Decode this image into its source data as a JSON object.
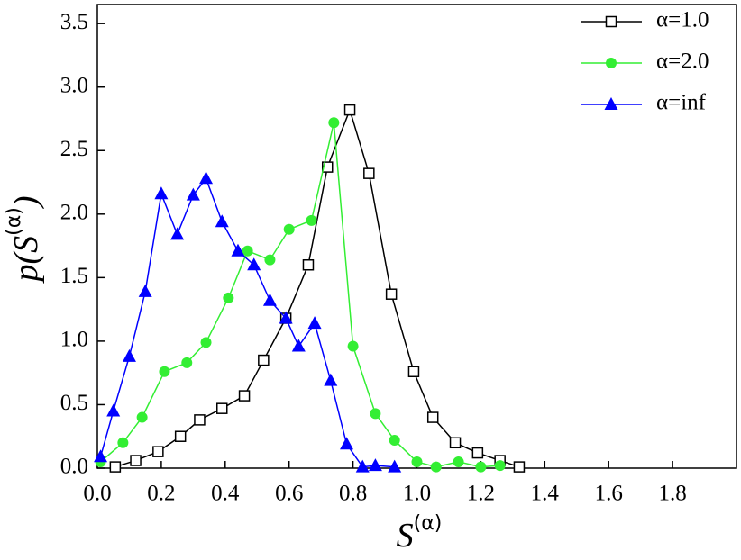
{
  "chart_data": {
    "type": "line",
    "xlabel": {
      "base": "S",
      "sup": "(α)"
    },
    "ylabel": {
      "prefix": "p(",
      "base": "S",
      "sup": "(α)",
      "suffix": ")"
    },
    "xlim": [
      0,
      2.0
    ],
    "ylim": [
      0,
      3.65
    ],
    "xticks": [
      {
        "value": 0,
        "label": "0.0"
      },
      0.2,
      0.4,
      0.6,
      0.8,
      {
        "value": 1,
        "label": "1.0"
      },
      1.2,
      1.4,
      1.6,
      1.8
    ],
    "yticks": [
      {
        "value": 0,
        "label": "0.0"
      },
      0.5,
      {
        "value": 1,
        "label": "1.0"
      },
      1.5,
      {
        "value": 2,
        "label": "2.0"
      },
      2.5,
      {
        "value": 3,
        "label": "3.0"
      },
      3.5
    ],
    "grid": false,
    "legend": "top-right",
    "series": [
      {
        "name": "α=1.0",
        "color": "#000000",
        "marker": "open-square",
        "x": [
          0.056,
          0.12,
          0.19,
          0.26,
          0.32,
          0.39,
          0.46,
          0.52,
          0.59,
          0.66,
          0.72,
          0.79,
          0.85,
          0.92,
          0.99,
          1.05,
          1.12,
          1.19,
          1.26,
          1.32
        ],
        "values": [
          0.01,
          0.06,
          0.13,
          0.25,
          0.38,
          0.47,
          0.57,
          0.85,
          1.18,
          1.6,
          2.37,
          2.82,
          2.32,
          1.37,
          0.76,
          0.4,
          0.2,
          0.12,
          0.06,
          0.01
        ]
      },
      {
        "name": "α=2.0",
        "color": "#33ee33",
        "marker": "circle",
        "x": [
          0.01,
          0.08,
          0.14,
          0.21,
          0.28,
          0.34,
          0.41,
          0.47,
          0.54,
          0.6,
          0.67,
          0.74,
          0.8,
          0.87,
          0.93,
          1.0,
          1.06,
          1.13,
          1.2,
          1.26
        ],
        "values": [
          0.05,
          0.2,
          0.4,
          0.76,
          0.83,
          0.99,
          1.34,
          1.71,
          1.64,
          1.88,
          1.95,
          2.72,
          0.96,
          0.43,
          0.22,
          0.05,
          0.01,
          0.05,
          0.01,
          0.02
        ]
      },
      {
        "name": "α=inf",
        "color": "#0000ff",
        "marker": "triangle",
        "x": [
          0.01,
          0.05,
          0.1,
          0.15,
          0.2,
          0.25,
          0.3,
          0.34,
          0.39,
          0.44,
          0.49,
          0.54,
          0.59,
          0.63,
          0.68,
          0.73,
          0.78,
          0.83,
          0.87,
          0.93
        ],
        "values": [
          0.09,
          0.45,
          0.88,
          1.39,
          2.16,
          1.84,
          2.15,
          2.28,
          1.94,
          1.71,
          1.6,
          1.32,
          1.18,
          0.96,
          1.14,
          0.69,
          0.19,
          0.01,
          0.02,
          0.01
        ]
      }
    ]
  }
}
